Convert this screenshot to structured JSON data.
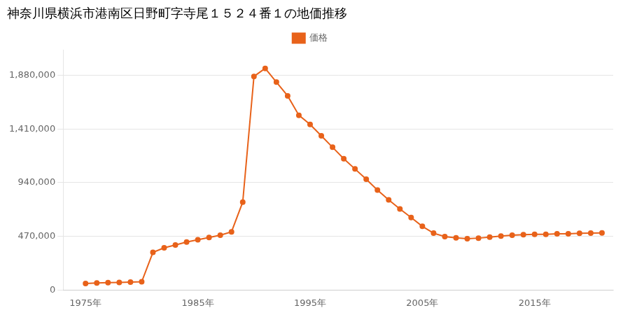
{
  "chart_data": {
    "type": "line",
    "title": "神奈川県横浜市港南区日野町字寺尾１５２４番１の地価推移",
    "x": [
      1975,
      1976,
      1977,
      1978,
      1979,
      1980,
      1981,
      1982,
      1983,
      1984,
      1985,
      1986,
      1987,
      1988,
      1989,
      1990,
      1991,
      1992,
      1993,
      1994,
      1995,
      1996,
      1997,
      1998,
      1999,
      2000,
      2001,
      2002,
      2003,
      2004,
      2005,
      2006,
      2007,
      2008,
      2009,
      2010,
      2011,
      2012,
      2013,
      2014,
      2015,
      2016,
      2017,
      2018,
      2019,
      2020,
      2021
    ],
    "series": [
      {
        "name": "価格",
        "color": "#e8621a",
        "marker": "circle",
        "values": [
          58000,
          62000,
          65000,
          67000,
          70000,
          73000,
          330000,
          370000,
          395000,
          420000,
          440000,
          460000,
          480000,
          510000,
          770000,
          1870000,
          1940000,
          1820000,
          1700000,
          1530000,
          1450000,
          1350000,
          1250000,
          1150000,
          1060000,
          970000,
          875000,
          790000,
          710000,
          635000,
          558000,
          498000,
          468000,
          457000,
          450000,
          455000,
          463000,
          472000,
          480000,
          485000,
          488000,
          488000,
          492000,
          493000,
          497000,
          498000,
          500000
        ]
      }
    ],
    "xlim": [
      1973,
      2022
    ],
    "xticks": [
      {
        "value": 1975,
        "label": "1975年"
      },
      {
        "value": 1985,
        "label": "1985年"
      },
      {
        "value": 1995,
        "label": "1995年"
      },
      {
        "value": 2005,
        "label": "2005年"
      },
      {
        "value": 2015,
        "label": "2015年"
      }
    ],
    "ylim": [
      0,
      2100000
    ],
    "yticks": [
      0,
      {
        "value": 470000,
        "label": "470,000"
      },
      {
        "value": 940000,
        "label": "940,000"
      },
      {
        "value": 1410000,
        "label": "1,410,000"
      },
      {
        "value": 1880000,
        "label": "1,880,000"
      }
    ],
    "grid": "y",
    "legend": "top"
  }
}
